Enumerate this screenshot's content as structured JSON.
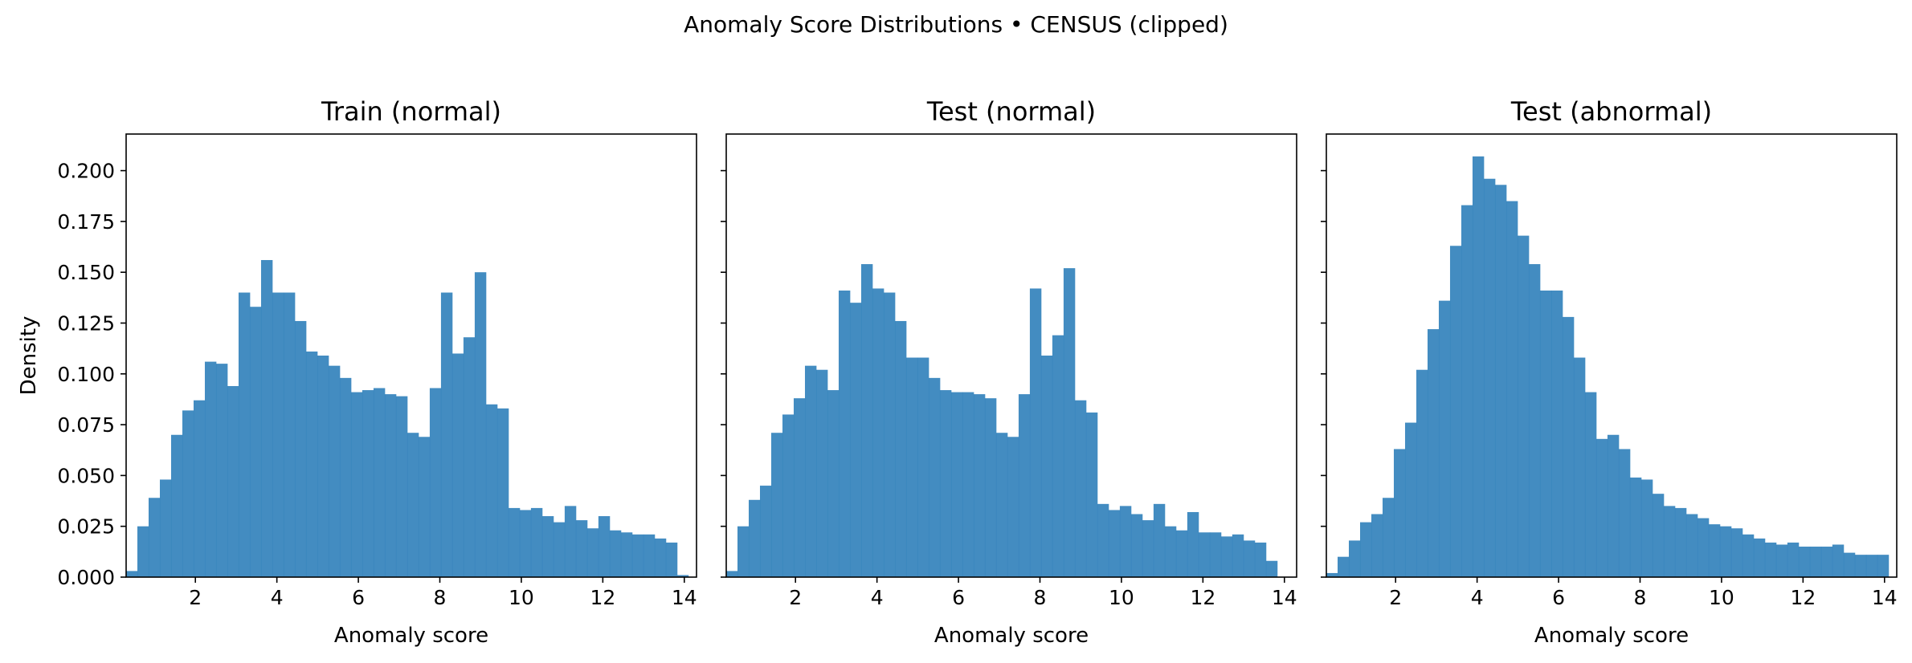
{
  "figure": {
    "suptitle": "Anomaly Score Distributions • CENSUS (clipped)"
  },
  "chart_data": [
    {
      "type": "bar",
      "title": "Train (normal)",
      "xlabel": "Anomaly score",
      "ylabel": "Density",
      "xlim": [
        0.3,
        14.3
      ],
      "ylim": [
        0,
        0.218
      ],
      "xticks": [
        "2",
        "4",
        "6",
        "8",
        "10",
        "12",
        "14"
      ],
      "yticks": [
        "0.000",
        "0.025",
        "0.050",
        "0.075",
        "0.100",
        "0.125",
        "0.150",
        "0.175",
        "0.200"
      ],
      "bin_start": 0.3,
      "bin_width": 0.276,
      "color": "#2f7fba",
      "values": [
        0.003,
        0.025,
        0.039,
        0.048,
        0.07,
        0.082,
        0.087,
        0.106,
        0.105,
        0.094,
        0.14,
        0.133,
        0.156,
        0.14,
        0.14,
        0.126,
        0.111,
        0.109,
        0.104,
        0.098,
        0.091,
        0.092,
        0.093,
        0.09,
        0.089,
        0.071,
        0.069,
        0.093,
        0.14,
        0.11,
        0.118,
        0.15,
        0.085,
        0.083,
        0.034,
        0.033,
        0.034,
        0.03,
        0.027,
        0.035,
        0.028,
        0.024,
        0.03,
        0.023,
        0.022,
        0.021,
        0.021,
        0.019,
        0.017,
        0.001
      ]
    },
    {
      "type": "bar",
      "title": "Test (normal)",
      "xlabel": "Anomaly score",
      "ylabel": "",
      "xlim": [
        0.3,
        14.3
      ],
      "ylim": [
        0,
        0.218
      ],
      "xticks": [
        "2",
        "4",
        "6",
        "8",
        "10",
        "12",
        "14"
      ],
      "yticks": [],
      "bin_start": 0.3,
      "bin_width": 0.276,
      "color": "#2f7fba",
      "values": [
        0.003,
        0.025,
        0.038,
        0.045,
        0.071,
        0.08,
        0.088,
        0.104,
        0.102,
        0.092,
        0.141,
        0.135,
        0.154,
        0.142,
        0.14,
        0.126,
        0.108,
        0.108,
        0.098,
        0.092,
        0.091,
        0.091,
        0.09,
        0.088,
        0.071,
        0.069,
        0.09,
        0.142,
        0.109,
        0.119,
        0.152,
        0.087,
        0.081,
        0.036,
        0.033,
        0.035,
        0.031,
        0.028,
        0.036,
        0.025,
        0.023,
        0.032,
        0.022,
        0.022,
        0.02,
        0.021,
        0.018,
        0.017,
        0.008
      ]
    },
    {
      "type": "bar",
      "title": "Test (abnormal)",
      "xlabel": "Anomaly score",
      "ylabel": "",
      "xlim": [
        0.3,
        14.3
      ],
      "ylim": [
        0,
        0.218
      ],
      "xticks": [
        "2",
        "4",
        "6",
        "8",
        "10",
        "12",
        "14"
      ],
      "yticks": [],
      "bin_start": 0.3,
      "bin_width": 0.276,
      "color": "#2f7fba",
      "values": [
        0.002,
        0.01,
        0.018,
        0.027,
        0.031,
        0.039,
        0.063,
        0.076,
        0.102,
        0.122,
        0.136,
        0.163,
        0.183,
        0.207,
        0.196,
        0.193,
        0.185,
        0.168,
        0.154,
        0.141,
        0.141,
        0.128,
        0.108,
        0.091,
        0.068,
        0.07,
        0.063,
        0.049,
        0.048,
        0.041,
        0.035,
        0.034,
        0.031,
        0.029,
        0.026,
        0.025,
        0.024,
        0.021,
        0.019,
        0.017,
        0.016,
        0.017,
        0.015,
        0.015,
        0.015,
        0.016,
        0.012,
        0.011,
        0.011,
        0.011
      ]
    }
  ]
}
